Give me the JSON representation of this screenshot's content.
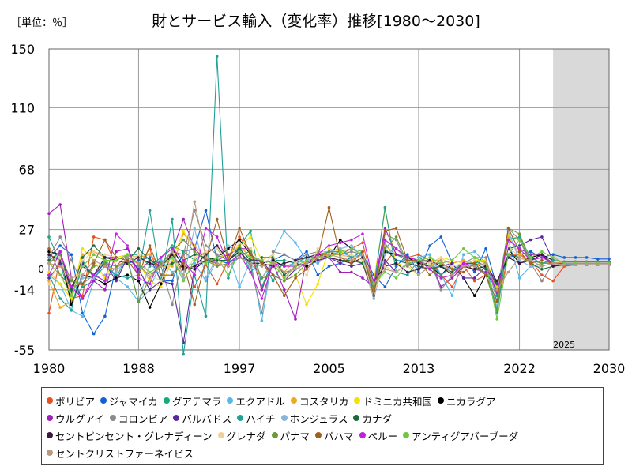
{
  "header": {
    "unit_label": "［単位：％］",
    "title": "財とサービス輸入（変化率）推移[1980～2030]"
  },
  "chart_data": {
    "type": "line",
    "title": "財とサービス輸入（変化率）推移[1980～2030]",
    "unit": "［単位：％］",
    "xlim": [
      1980,
      2030
    ],
    "ylim": [
      -55,
      150
    ],
    "x_ticks": [
      1980,
      1988,
      1997,
      2005,
      2013,
      2022,
      2030
    ],
    "y_ticks": [
      150,
      110,
      68,
      27,
      -14,
      -55
    ],
    "zero_label": "0",
    "forecast_start": 2025,
    "forecast_label": "2025",
    "grid": true,
    "legend_position": "bottom",
    "series": [
      {
        "name": "ボリビア",
        "color": "#e8501e",
        "values": [
          -30,
          8,
          -20,
          -18,
          22,
          20,
          2,
          10,
          3,
          14,
          -10,
          12,
          10,
          -12,
          3,
          -10,
          6,
          22,
          12,
          -14,
          8,
          -4,
          2,
          4,
          10,
          10,
          10,
          14,
          18,
          -12,
          4,
          14,
          8,
          10,
          6,
          -4,
          -12,
          2,
          -8,
          -4,
          -26,
          10,
          10,
          6,
          -4,
          -8,
          2,
          3,
          3,
          3,
          3
        ]
      },
      {
        "name": "ジャマイカ",
        "color": "#1060d8",
        "values": [
          8,
          16,
          10,
          -30,
          -44,
          -32,
          2,
          4,
          6,
          8,
          -8,
          -8,
          12,
          14,
          40,
          6,
          4,
          8,
          4,
          4,
          6,
          10,
          6,
          12,
          -4,
          2,
          4,
          8,
          10,
          -4,
          -12,
          2,
          10,
          -2,
          16,
          22,
          4,
          6,
          -2,
          14,
          -12,
          8,
          10,
          12,
          8,
          10,
          8,
          8,
          8,
          7,
          7
        ]
      },
      {
        "name": "グアテマラ",
        "color": "#1aa87a",
        "values": [
          22,
          4,
          -22,
          -12,
          -8,
          6,
          -6,
          10,
          10,
          2,
          8,
          16,
          12,
          6,
          12,
          14,
          4,
          16,
          26,
          -12,
          6,
          6,
          4,
          8,
          8,
          10,
          10,
          12,
          10,
          -18,
          16,
          10,
          6,
          8,
          4,
          4,
          0,
          4,
          4,
          6,
          -18,
          22,
          20,
          6,
          8,
          4,
          3,
          4,
          4,
          4,
          4
        ]
      },
      {
        "name": "エクアドル",
        "color": "#58b8e8",
        "values": [
          -4,
          -10,
          -28,
          -32,
          -8,
          8,
          -6,
          -12,
          -22,
          -14,
          6,
          -2,
          2,
          4,
          -8,
          6,
          10,
          -12,
          6,
          -35,
          10,
          26,
          18,
          6,
          4,
          10,
          12,
          8,
          10,
          -18,
          18,
          6,
          6,
          8,
          10,
          -4,
          -18,
          10,
          12,
          4,
          -26,
          20,
          -6,
          2,
          4,
          4,
          4,
          3,
          3,
          3,
          3
        ]
      },
      {
        "name": "コスタリカ",
        "color": "#f0a820",
        "values": [
          -8,
          -26,
          -22,
          10,
          12,
          8,
          6,
          10,
          8,
          10,
          2,
          2,
          24,
          16,
          8,
          2,
          8,
          16,
          8,
          -6,
          6,
          -2,
          6,
          4,
          6,
          10,
          10,
          8,
          4,
          -20,
          16,
          10,
          8,
          4,
          6,
          6,
          4,
          6,
          4,
          2,
          -14,
          22,
          10,
          4,
          6,
          4,
          4,
          4,
          4,
          4,
          4
        ]
      },
      {
        "name": "ドミニカ共和国",
        "color": "#f6e000",
        "values": [
          -2,
          -10,
          -20,
          14,
          6,
          -6,
          8,
          10,
          4,
          -8,
          -12,
          6,
          26,
          14,
          6,
          8,
          10,
          16,
          22,
          6,
          10,
          -8,
          -4,
          -24,
          -10,
          14,
          12,
          10,
          6,
          -8,
          40,
          4,
          2,
          -4,
          2,
          8,
          6,
          4,
          6,
          6,
          -12,
          24,
          20,
          8,
          4,
          4,
          5,
          5,
          5,
          5,
          5
        ]
      },
      {
        "name": "ニカラグア",
        "color": "#000000",
        "values": [
          12,
          10,
          -24,
          -4,
          -6,
          -10,
          -6,
          -4,
          -8,
          -26,
          -10,
          14,
          2,
          0,
          6,
          8,
          14,
          20,
          10,
          4,
          6,
          2,
          4,
          2,
          6,
          8,
          20,
          14,
          10,
          -14,
          12,
          10,
          8,
          4,
          2,
          -4,
          4,
          -6,
          -18,
          -4,
          -10,
          14,
          4,
          8,
          10,
          6,
          5,
          5,
          5,
          5,
          5
        ]
      },
      {
        "name": "ウルグアイ",
        "color": "#a020b8",
        "values": [
          38,
          44,
          -6,
          -20,
          -8,
          -14,
          12,
          14,
          -2,
          6,
          4,
          12,
          34,
          14,
          6,
          6,
          10,
          14,
          14,
          -14,
          4,
          -14,
          -34,
          8,
          8,
          8,
          -2,
          -2,
          -6,
          -12,
          28,
          10,
          8,
          6,
          6,
          -12,
          -6,
          2,
          0,
          -2,
          -14,
          20,
          14,
          10,
          10,
          4,
          4,
          4,
          4,
          4,
          4
        ]
      },
      {
        "name": "コロンビア",
        "color": "#8a8a8a",
        "values": [
          8,
          22,
          6,
          -10,
          -4,
          -8,
          2,
          4,
          2,
          -4,
          2,
          -24,
          10,
          40,
          16,
          10,
          6,
          12,
          2,
          -30,
          12,
          10,
          6,
          10,
          12,
          12,
          10,
          12,
          10,
          -14,
          24,
          20,
          2,
          6,
          6,
          -14,
          -4,
          4,
          8,
          8,
          -22,
          28,
          20,
          4,
          -8,
          4,
          4,
          4,
          4,
          4,
          4
        ]
      },
      {
        "name": "バルバドス",
        "color": "#5a28a0",
        "values": [
          -6,
          4,
          -14,
          4,
          -4,
          4,
          -8,
          8,
          0,
          -14,
          -8,
          -10,
          -50,
          2,
          6,
          4,
          2,
          8,
          6,
          6,
          -4,
          -8,
          0,
          4,
          6,
          8,
          4,
          2,
          4,
          -18,
          6,
          -2,
          4,
          2,
          0,
          2,
          4,
          -6,
          -6,
          2,
          -10,
          14,
          16,
          20,
          22,
          6,
          5,
          5,
          5,
          5,
          5
        ]
      },
      {
        "name": "ハイチ",
        "color": "#20a098",
        "values": [
          -4,
          -20,
          -28,
          6,
          -6,
          2,
          -4,
          -6,
          -4,
          40,
          -8,
          34,
          -58,
          -4,
          -32,
          145,
          -6,
          16,
          -2,
          6,
          -8,
          6,
          4,
          8,
          10,
          12,
          14,
          8,
          12,
          -12,
          42,
          -2,
          -4,
          6,
          4,
          -4,
          2,
          4,
          6,
          2,
          -30,
          20,
          22,
          8,
          4,
          6,
          5,
          5,
          5,
          5,
          5
        ]
      },
      {
        "name": "ホンジュラス",
        "color": "#88b4e0",
        "values": [
          4,
          12,
          -16,
          -6,
          -6,
          -4,
          -2,
          8,
          -22,
          4,
          -4,
          10,
          -6,
          28,
          -6,
          8,
          16,
          12,
          4,
          -6,
          4,
          2,
          4,
          6,
          12,
          12,
          14,
          16,
          8,
          -20,
          10,
          14,
          6,
          0,
          2,
          2,
          0,
          2,
          4,
          0,
          -14,
          26,
          6,
          2,
          2,
          4,
          4,
          4,
          4,
          4,
          4
        ]
      },
      {
        "name": "カナダ",
        "color": "#1a6a3a",
        "values": [
          6,
          12,
          -16,
          8,
          16,
          8,
          8,
          6,
          14,
          6,
          2,
          4,
          6,
          10,
          8,
          6,
          6,
          14,
          6,
          8,
          8,
          -4,
          2,
          4,
          8,
          8,
          6,
          6,
          4,
          -14,
          14,
          6,
          4,
          2,
          0,
          2,
          -2,
          4,
          4,
          0,
          -10,
          10,
          8,
          4,
          0,
          2,
          3,
          3,
          3,
          3,
          3
        ]
      },
      {
        "name": "セントビンセント・グレナディーン",
        "color": "#3a1a3a",
        "values": [
          10,
          6,
          -12,
          2,
          -4,
          8,
          6,
          4,
          8,
          4,
          2,
          10,
          0,
          2,
          10,
          16,
          6,
          12,
          4,
          4,
          2,
          4,
          6,
          8,
          10,
          8,
          6,
          4,
          8,
          -8,
          2,
          4,
          -2,
          0,
          6,
          2,
          -4,
          2,
          0,
          2,
          -8,
          8,
          4,
          6,
          10,
          2,
          3,
          3,
          3,
          3,
          3
        ]
      },
      {
        "name": "グレナダ",
        "color": "#f0d09a",
        "values": [
          -10,
          8,
          -18,
          6,
          12,
          10,
          8,
          6,
          10,
          -4,
          -8,
          8,
          -4,
          8,
          12,
          14,
          6,
          18,
          14,
          2,
          10,
          -8,
          4,
          -4,
          14,
          10,
          8,
          10,
          6,
          -16,
          2,
          -2,
          4,
          6,
          4,
          8,
          2,
          4,
          6,
          4,
          -14,
          16,
          8,
          4,
          6,
          4,
          4,
          4,
          4,
          4,
          4
        ]
      },
      {
        "name": "パナマ",
        "color": "#6a9a3a",
        "values": [
          4,
          10,
          -8,
          -10,
          2,
          4,
          2,
          6,
          -22,
          -6,
          4,
          12,
          20,
          12,
          6,
          2,
          4,
          10,
          12,
          -6,
          -4,
          -8,
          -4,
          4,
          8,
          12,
          12,
          14,
          12,
          -14,
          14,
          22,
          4,
          6,
          2,
          -6,
          -4,
          4,
          2,
          -4,
          -28,
          28,
          24,
          6,
          4,
          4,
          4,
          4,
          4,
          4,
          4
        ]
      },
      {
        "name": "バハマ",
        "color": "#a06020",
        "values": [
          14,
          -4,
          -12,
          -10,
          4,
          20,
          8,
          6,
          -4,
          16,
          -4,
          -4,
          4,
          -24,
          6,
          34,
          6,
          28,
          10,
          4,
          -4,
          -18,
          -6,
          0,
          8,
          42,
          8,
          4,
          12,
          -18,
          26,
          28,
          6,
          6,
          -4,
          4,
          0,
          -2,
          4,
          -4,
          -22,
          28,
          12,
          4,
          6,
          4,
          4,
          4,
          4,
          4,
          4
        ]
      },
      {
        "name": "ペルー",
        "color": "#c020e0",
        "values": [
          -4,
          12,
          -12,
          -20,
          -4,
          -8,
          24,
          16,
          -6,
          -10,
          8,
          14,
          6,
          -4,
          28,
          22,
          4,
          10,
          -2,
          -20,
          4,
          2,
          2,
          4,
          10,
          16,
          18,
          20,
          24,
          -10,
          20,
          14,
          8,
          6,
          0,
          -6,
          -4,
          4,
          2,
          4,
          -16,
          20,
          14,
          6,
          8,
          4,
          4,
          4,
          4,
          4,
          4
        ]
      },
      {
        "name": "アンティグアバーブーダ",
        "color": "#70c840",
        "values": [
          4,
          -4,
          -18,
          2,
          10,
          6,
          6,
          10,
          4,
          -2,
          2,
          8,
          -8,
          6,
          4,
          8,
          -4,
          12,
          8,
          6,
          4,
          -6,
          2,
          6,
          8,
          8,
          12,
          14,
          10,
          -10,
          -2,
          -6,
          4,
          6,
          8,
          4,
          6,
          14,
          8,
          4,
          -34,
          10,
          20,
          8,
          12,
          8,
          4,
          4,
          4,
          4,
          4
        ]
      },
      {
        "name": "セントクリストファーネイビス",
        "color": "#b89a80",
        "values": [
          4,
          2,
          -6,
          -4,
          6,
          2,
          0,
          8,
          4,
          -6,
          2,
          12,
          -4,
          46,
          8,
          4,
          2,
          8,
          4,
          2,
          4,
          -2,
          0,
          4,
          8,
          10,
          8,
          6,
          10,
          -10,
          0,
          -2,
          4,
          -4,
          2,
          6,
          -4,
          2,
          2,
          4,
          -14,
          -2,
          8,
          6,
          2,
          4,
          3,
          3,
          3,
          3,
          3
        ]
      }
    ]
  }
}
